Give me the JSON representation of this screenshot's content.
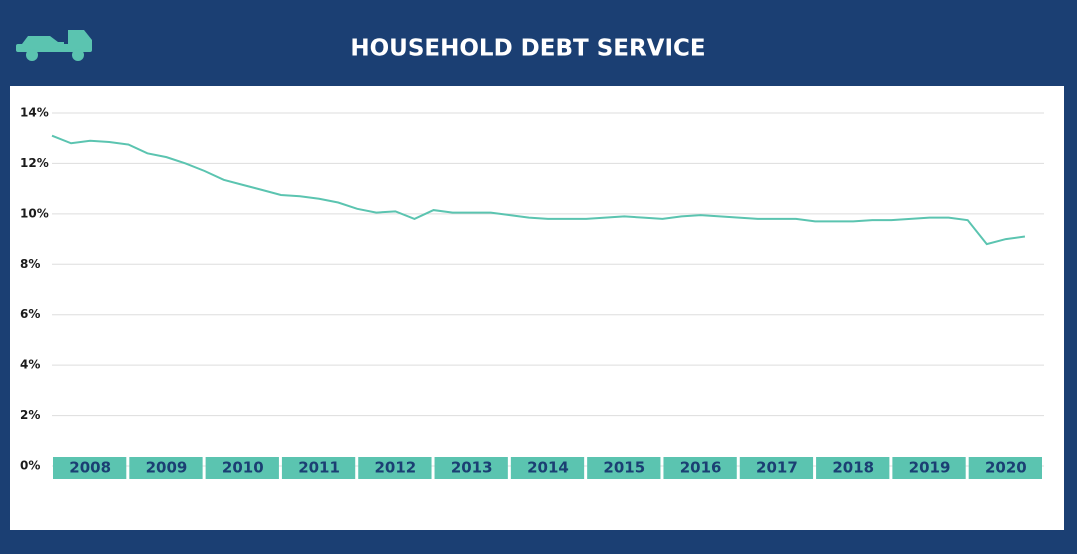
{
  "chart_data": {
    "type": "line",
    "title": "HOUSEHOLD DEBT SERVICE",
    "x": [
      2008,
      2008.25,
      2008.5,
      2008.75,
      2009,
      2009.25,
      2009.5,
      2009.75,
      2010,
      2010.25,
      2010.5,
      2010.75,
      2011,
      2011.25,
      2011.5,
      2011.75,
      2012,
      2012.25,
      2012.5,
      2012.75,
      2013,
      2013.25,
      2013.5,
      2013.75,
      2014,
      2014.25,
      2014.5,
      2014.75,
      2015,
      2015.25,
      2015.5,
      2015.75,
      2016,
      2016.25,
      2016.5,
      2016.75,
      2017,
      2017.25,
      2017.5,
      2017.75,
      2018,
      2018.25,
      2018.5,
      2018.75,
      2019,
      2019.25,
      2019.5,
      2019.75,
      2020,
      2020.25,
      2020.5,
      2020.75
    ],
    "values": [
      13.1,
      12.8,
      12.9,
      12.85,
      12.75,
      12.4,
      12.25,
      12.0,
      11.7,
      11.35,
      11.15,
      10.95,
      10.75,
      10.7,
      10.6,
      10.45,
      10.2,
      10.05,
      10.1,
      9.8,
      10.15,
      10.05,
      10.05,
      10.05,
      9.95,
      9.85,
      9.8,
      9.8,
      9.8,
      9.85,
      9.9,
      9.85,
      9.8,
      9.9,
      9.95,
      9.9,
      9.85,
      9.8,
      9.8,
      9.8,
      9.7,
      9.7,
      9.7,
      9.75,
      9.75,
      9.8,
      9.85,
      9.85,
      9.75,
      8.8,
      9.0,
      9.1
    ],
    "color": "#5bc4b0",
    "xlim": [
      2008,
      2021
    ],
    "xticks": [
      2008,
      2009,
      2010,
      2011,
      2012,
      2013,
      2014,
      2015,
      2016,
      2017,
      2018,
      2019,
      2020
    ],
    "ylim": [
      0,
      14
    ],
    "yticks": [
      {
        "value": 0,
        "label": "0%"
      },
      {
        "value": 2,
        "label": "2%"
      },
      {
        "value": 4,
        "label": "4%"
      },
      {
        "value": 6,
        "label": "6%"
      },
      {
        "value": 8,
        "label": "8%"
      },
      {
        "value": 10,
        "label": "10%"
      },
      {
        "value": 12,
        "label": "12%"
      },
      {
        "value": 14,
        "label": "14%"
      }
    ],
    "grid": true
  }
}
